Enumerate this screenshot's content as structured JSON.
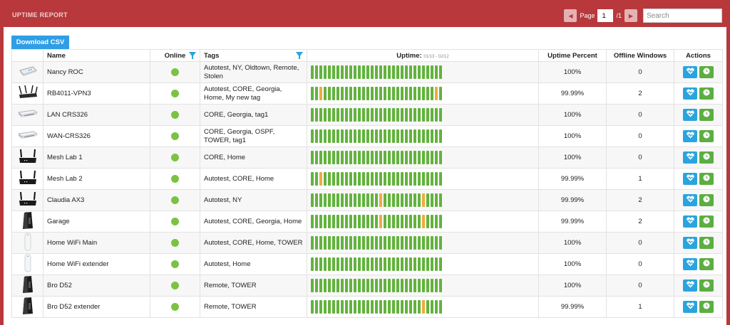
{
  "header": {
    "title": "UPTIME REPORT",
    "page_label": "Page",
    "page_value": "1",
    "page_total": "/1",
    "search_placeholder": "Search"
  },
  "toolbar": {
    "download_label": "Download CSV"
  },
  "columns": {
    "name": "Name",
    "online": "Online",
    "tags": "Tags",
    "uptime": "Uptime:",
    "uptime_range": "01/13 - 02/12",
    "uptime_percent": "Uptime Percent",
    "offline_windows": "Offline Windows",
    "actions": "Actions"
  },
  "colors": {
    "online": "#7cc242",
    "bar_up": "#62b33d",
    "bar_down": "#f0a940",
    "accent": "#b8383c"
  },
  "rows": [
    {
      "name": "Nancy ROC",
      "device": "desk-router-icon",
      "online": true,
      "tags": "Autotest, NY, Oldtown, Remote, Stolen",
      "percent": "100%",
      "offline": "0",
      "down_days": []
    },
    {
      "name": "RB4011-VPN3",
      "device": "antenna-router-icon",
      "online": true,
      "tags": "Autotest, CORE, Georgia, Home, My new tag",
      "percent": "99.99%",
      "offline": "2",
      "down_days": [
        2,
        29
      ]
    },
    {
      "name": "LAN CRS326",
      "device": "rack-switch-icon",
      "online": true,
      "tags": "CORE, Georgia, tag1",
      "percent": "100%",
      "offline": "0",
      "down_days": []
    },
    {
      "name": "WAN-CRS326",
      "device": "rack-switch-icon",
      "online": true,
      "tags": "CORE, Georgia, OSPF, TOWER, tag1",
      "percent": "100%",
      "offline": "0",
      "down_days": []
    },
    {
      "name": "Mesh Lab 1",
      "device": "black-router-icon",
      "online": true,
      "tags": "CORE, Home",
      "percent": "100%",
      "offline": "0",
      "down_days": []
    },
    {
      "name": "Mesh Lab 2",
      "device": "black-router-icon",
      "online": true,
      "tags": "Autotest, CORE, Home",
      "percent": "99.99%",
      "offline": "1",
      "down_days": [
        2
      ]
    },
    {
      "name": "Claudia AX3",
      "device": "black-router-icon",
      "online": true,
      "tags": "Autotest, NY",
      "percent": "99.99%",
      "offline": "2",
      "down_days": [
        16,
        26
      ]
    },
    {
      "name": "Garage",
      "device": "tower-router-icon",
      "online": true,
      "tags": "Autotest, CORE, Georgia, Home",
      "percent": "99.99%",
      "offline": "2",
      "down_days": [
        16,
        26
      ]
    },
    {
      "name": "Home WiFi Main",
      "device": "white-tower-icon",
      "online": true,
      "tags": "Autotest, CORE, Home, TOWER",
      "percent": "100%",
      "offline": "0",
      "down_days": []
    },
    {
      "name": "Home WiFi extender",
      "device": "white-tower-icon",
      "online": true,
      "tags": "Autotest, Home",
      "percent": "100%",
      "offline": "0",
      "down_days": []
    },
    {
      "name": "Bro D52",
      "device": "tower-router-icon",
      "online": true,
      "tags": "Remote, TOWER",
      "percent": "100%",
      "offline": "0",
      "down_days": []
    },
    {
      "name": "Bro D52 extender",
      "device": "tower-router-icon",
      "online": true,
      "tags": "Remote, TOWER",
      "percent": "99.99%",
      "offline": "1",
      "down_days": [
        26
      ]
    }
  ]
}
